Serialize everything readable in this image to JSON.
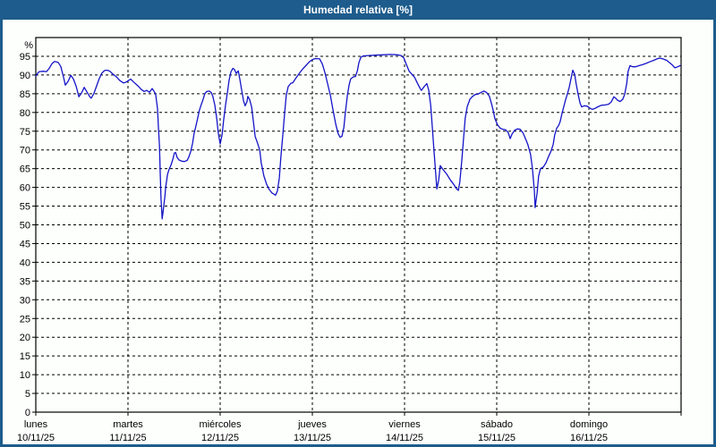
{
  "window": {
    "title": "Humedad relativa [%]"
  },
  "colors": {
    "titlebar_bg": "#1d5c8c",
    "titlebar_text": "#ffffff",
    "panel_bg": "#fdfffd",
    "frame": "#000000",
    "grid": "#000000",
    "text": "#000000",
    "line": "#1414c8"
  },
  "chart_data": {
    "type": "line",
    "title": "Humedad relativa [%]",
    "ylabel": "%",
    "ylim": [
      0,
      100
    ],
    "y_ticks": [
      0,
      5,
      10,
      15,
      20,
      25,
      30,
      35,
      40,
      45,
      50,
      55,
      60,
      65,
      70,
      75,
      80,
      85,
      90,
      95
    ],
    "grid": "dashed",
    "x_axis": {
      "hours_total": 168,
      "days": [
        {
          "name": "lunes",
          "date": "10/11/25"
        },
        {
          "name": "martes",
          "date": "11/11/25"
        },
        {
          "name": "miércoles",
          "date": "12/11/25"
        },
        {
          "name": "jueves",
          "date": "13/11/25"
        },
        {
          "name": "viernes",
          "date": "14/11/25"
        },
        {
          "name": "sábado",
          "date": "15/11/25"
        },
        {
          "name": "domingo",
          "date": "16/11/25"
        }
      ]
    },
    "series": [
      {
        "name": "Humedad relativa",
        "unit": "%",
        "points": [
          [
            0.0,
            89.7
          ],
          [
            0.5,
            90.5
          ],
          [
            0.9,
            90.9
          ],
          [
            1.9,
            91.0
          ],
          [
            2.8,
            90.9
          ],
          [
            3.5,
            91.8
          ],
          [
            4.2,
            93.0
          ],
          [
            4.9,
            93.6
          ],
          [
            5.8,
            93.4
          ],
          [
            6.5,
            92.3
          ],
          [
            7.2,
            89.5
          ],
          [
            7.7,
            87.3
          ],
          [
            8.4,
            88.3
          ],
          [
            9.1,
            89.9
          ],
          [
            9.8,
            88.9
          ],
          [
            10.5,
            87.0
          ],
          [
            11.2,
            84.2
          ],
          [
            11.9,
            85.2
          ],
          [
            12.6,
            86.7
          ],
          [
            13.3,
            85.5
          ],
          [
            14.0,
            84.3
          ],
          [
            14.4,
            83.8
          ],
          [
            15.1,
            85.0
          ],
          [
            15.8,
            87.0
          ],
          [
            16.5,
            89.0
          ],
          [
            17.2,
            90.5
          ],
          [
            17.9,
            91.2
          ],
          [
            18.6,
            91.3
          ],
          [
            19.3,
            91.0
          ],
          [
            20.0,
            90.3
          ],
          [
            21.0,
            89.5
          ],
          [
            21.9,
            88.5
          ],
          [
            22.8,
            87.9
          ],
          [
            23.5,
            88.1
          ],
          [
            24.2,
            88.6
          ],
          [
            24.7,
            88.9
          ],
          [
            25.6,
            88.0
          ],
          [
            26.6,
            87.1
          ],
          [
            27.5,
            86.1
          ],
          [
            28.2,
            85.6
          ],
          [
            28.9,
            85.9
          ],
          [
            29.6,
            85.4
          ],
          [
            30.3,
            86.4
          ],
          [
            30.8,
            85.6
          ],
          [
            31.2,
            84.9
          ],
          [
            31.7,
            81.0
          ],
          [
            31.9,
            76.5
          ],
          [
            32.2,
            71.0
          ],
          [
            32.4,
            64.0
          ],
          [
            32.6,
            57.0
          ],
          [
            32.9,
            51.6
          ],
          [
            33.1,
            53.3
          ],
          [
            33.6,
            57.5
          ],
          [
            33.8,
            60.0
          ],
          [
            34.3,
            63.5
          ],
          [
            34.7,
            64.8
          ],
          [
            35.2,
            66.0
          ],
          [
            35.7,
            67.6
          ],
          [
            36.1,
            69.2
          ],
          [
            36.4,
            69.3
          ],
          [
            36.8,
            68.0
          ],
          [
            37.3,
            67.3
          ],
          [
            38.0,
            67.0
          ],
          [
            38.7,
            66.9
          ],
          [
            39.4,
            67.2
          ],
          [
            39.8,
            68.0
          ],
          [
            40.3,
            69.5
          ],
          [
            40.8,
            71.7
          ],
          [
            41.2,
            74.3
          ],
          [
            41.7,
            76.5
          ],
          [
            42.2,
            78.7
          ],
          [
            42.6,
            80.6
          ],
          [
            43.1,
            82.2
          ],
          [
            43.6,
            83.6
          ],
          [
            44.0,
            85.0
          ],
          [
            44.5,
            85.6
          ],
          [
            45.2,
            85.7
          ],
          [
            45.7,
            85.3
          ],
          [
            46.1,
            84.3
          ],
          [
            46.6,
            82.0
          ],
          [
            47.1,
            78.5
          ],
          [
            47.5,
            74.5
          ],
          [
            48.0,
            71.6
          ],
          [
            48.5,
            74.0
          ],
          [
            48.9,
            78.0
          ],
          [
            49.4,
            82.0
          ],
          [
            49.9,
            85.5
          ],
          [
            50.3,
            88.5
          ],
          [
            50.8,
            90.8
          ],
          [
            51.3,
            91.8
          ],
          [
            51.7,
            91.5
          ],
          [
            52.2,
            90.4
          ],
          [
            52.7,
            91.1
          ],
          [
            53.1,
            89.0
          ],
          [
            53.6,
            86.0
          ],
          [
            54.1,
            83.0
          ],
          [
            54.5,
            81.8
          ],
          [
            55.0,
            82.9
          ],
          [
            55.2,
            84.3
          ],
          [
            55.7,
            83.4
          ],
          [
            56.2,
            81.4
          ],
          [
            56.6,
            78.0
          ],
          [
            57.1,
            73.6
          ],
          [
            57.7,
            71.9
          ],
          [
            58.3,
            70.0
          ],
          [
            58.7,
            66.5
          ],
          [
            59.4,
            63.0
          ],
          [
            60.1,
            60.8
          ],
          [
            60.8,
            59.4
          ],
          [
            61.5,
            58.5
          ],
          [
            62.0,
            58.2
          ],
          [
            62.4,
            57.9
          ],
          [
            62.9,
            59.0
          ],
          [
            63.4,
            62.5
          ],
          [
            63.8,
            68.0
          ],
          [
            64.3,
            74.0
          ],
          [
            64.8,
            80.0
          ],
          [
            65.2,
            84.5
          ],
          [
            65.7,
            86.9
          ],
          [
            66.4,
            87.8
          ],
          [
            66.9,
            87.9
          ],
          [
            67.6,
            89.0
          ],
          [
            68.5,
            90.3
          ],
          [
            69.4,
            91.5
          ],
          [
            70.4,
            92.6
          ],
          [
            71.3,
            93.6
          ],
          [
            72.2,
            94.2
          ],
          [
            72.9,
            94.4
          ],
          [
            73.9,
            94.3
          ],
          [
            74.6,
            92.9
          ],
          [
            75.3,
            90.5
          ],
          [
            76.0,
            87.5
          ],
          [
            76.7,
            84.5
          ],
          [
            77.4,
            80.5
          ],
          [
            78.1,
            76.8
          ],
          [
            78.7,
            74.4
          ],
          [
            79.2,
            73.4
          ],
          [
            79.7,
            73.6
          ],
          [
            80.2,
            76.0
          ],
          [
            80.6,
            80.0
          ],
          [
            81.1,
            84.5
          ],
          [
            81.6,
            87.5
          ],
          [
            82.0,
            89.0
          ],
          [
            82.7,
            89.5
          ],
          [
            83.2,
            89.6
          ],
          [
            83.7,
            91.0
          ],
          [
            84.1,
            93.2
          ],
          [
            84.6,
            94.7
          ],
          [
            85.3,
            95.1
          ],
          [
            86.7,
            95.2
          ],
          [
            88.5,
            95.3
          ],
          [
            90.4,
            95.4
          ],
          [
            92.3,
            95.5
          ],
          [
            94.1,
            95.4
          ],
          [
            95.1,
            95.2
          ],
          [
            95.8,
            94.6
          ],
          [
            96.5,
            92.8
          ],
          [
            97.2,
            91.0
          ],
          [
            97.9,
            90.2
          ],
          [
            98.6,
            89.4
          ],
          [
            99.3,
            87.9
          ],
          [
            100.0,
            86.5
          ],
          [
            100.4,
            85.9
          ],
          [
            101.1,
            86.9
          ],
          [
            101.8,
            87.7
          ],
          [
            102.3,
            86.0
          ],
          [
            102.8,
            82.0
          ],
          [
            103.2,
            76.5
          ],
          [
            103.7,
            69.5
          ],
          [
            104.2,
            62.5
          ],
          [
            104.4,
            59.6
          ],
          [
            104.9,
            62.0
          ],
          [
            105.3,
            65.8
          ],
          [
            106.0,
            64.8
          ],
          [
            107.0,
            63.5
          ],
          [
            107.9,
            62.0
          ],
          [
            108.8,
            60.8
          ],
          [
            109.5,
            59.7
          ],
          [
            110.0,
            59.2
          ],
          [
            110.4,
            61.5
          ],
          [
            110.9,
            67.0
          ],
          [
            111.4,
            73.5
          ],
          [
            111.8,
            78.5
          ],
          [
            112.3,
            81.5
          ],
          [
            113.0,
            83.5
          ],
          [
            113.7,
            84.3
          ],
          [
            114.4,
            84.8
          ],
          [
            115.1,
            84.9
          ],
          [
            116.0,
            85.4
          ],
          [
            116.7,
            85.7
          ],
          [
            117.4,
            85.3
          ],
          [
            118.1,
            84.3
          ],
          [
            118.6,
            82.5
          ],
          [
            119.1,
            80.5
          ],
          [
            119.5,
            78.4
          ],
          [
            120.2,
            76.7
          ],
          [
            120.9,
            75.8
          ],
          [
            121.6,
            75.5
          ],
          [
            122.3,
            75.4
          ],
          [
            123.0,
            74.6
          ],
          [
            123.5,
            73.0
          ],
          [
            124.0,
            74.3
          ],
          [
            124.7,
            75.3
          ],
          [
            125.4,
            75.6
          ],
          [
            126.1,
            75.5
          ],
          [
            126.8,
            74.6
          ],
          [
            127.4,
            73.2
          ],
          [
            128.1,
            71.4
          ],
          [
            128.8,
            68.8
          ],
          [
            129.3,
            65.0
          ],
          [
            129.8,
            59.0
          ],
          [
            130.0,
            54.6
          ],
          [
            130.5,
            58.5
          ],
          [
            130.9,
            63.0
          ],
          [
            131.4,
            65.0
          ],
          [
            132.1,
            65.4
          ],
          [
            132.8,
            66.5
          ],
          [
            133.5,
            68.2
          ],
          [
            134.2,
            69.8
          ],
          [
            134.7,
            71.5
          ],
          [
            135.1,
            74.0
          ],
          [
            135.6,
            75.8
          ],
          [
            136.1,
            76.5
          ],
          [
            136.5,
            77.5
          ],
          [
            137.0,
            79.8
          ],
          [
            137.5,
            81.7
          ],
          [
            137.9,
            83.3
          ],
          [
            138.4,
            85.0
          ],
          [
            138.9,
            86.8
          ],
          [
            139.3,
            88.8
          ],
          [
            139.8,
            91.3
          ],
          [
            140.3,
            90.2
          ],
          [
            140.7,
            87.6
          ],
          [
            141.2,
            84.8
          ],
          [
            141.7,
            82.5
          ],
          [
            142.1,
            81.5
          ],
          [
            142.8,
            81.8
          ],
          [
            143.5,
            81.7
          ],
          [
            144.2,
            81.2
          ],
          [
            144.9,
            80.8
          ],
          [
            145.6,
            81.1
          ],
          [
            146.3,
            81.5
          ],
          [
            147.2,
            81.9
          ],
          [
            148.2,
            82.0
          ],
          [
            149.1,
            82.2
          ],
          [
            149.8,
            82.8
          ],
          [
            150.5,
            84.2
          ],
          [
            151.0,
            83.8
          ],
          [
            151.4,
            83.3
          ],
          [
            152.1,
            82.9
          ],
          [
            152.8,
            83.5
          ],
          [
            153.3,
            84.8
          ],
          [
            153.8,
            87.5
          ],
          [
            154.2,
            91.0
          ],
          [
            154.7,
            92.5
          ],
          [
            155.4,
            92.2
          ],
          [
            156.1,
            92.2
          ],
          [
            157.1,
            92.5
          ],
          [
            158.0,
            92.8
          ],
          [
            158.9,
            93.1
          ],
          [
            159.8,
            93.5
          ],
          [
            160.8,
            93.9
          ],
          [
            161.7,
            94.3
          ],
          [
            162.4,
            94.5
          ],
          [
            163.3,
            94.3
          ],
          [
            164.3,
            93.9
          ],
          [
            165.0,
            93.3
          ],
          [
            165.7,
            92.7
          ],
          [
            166.4,
            91.9
          ],
          [
            167.1,
            92.2
          ],
          [
            167.8,
            92.5
          ]
        ]
      }
    ]
  }
}
